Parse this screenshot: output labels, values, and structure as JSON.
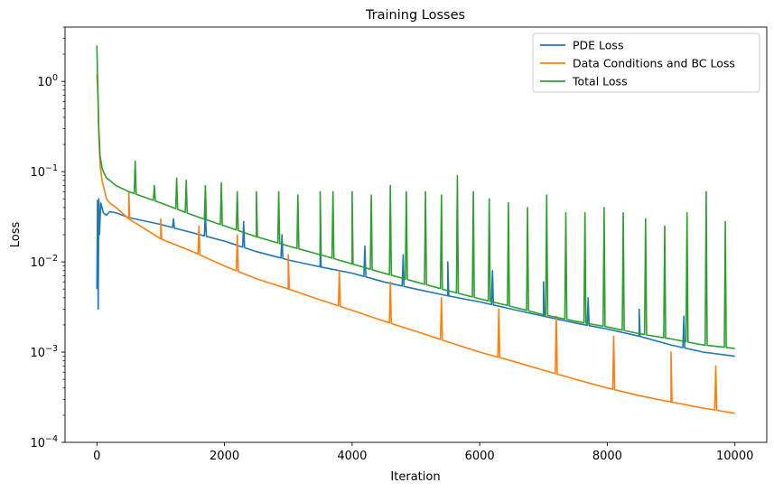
{
  "chart_data": {
    "type": "line",
    "title": "Training Losses",
    "xlabel": "Iteration",
    "ylabel": "Loss",
    "xlim": [
      -500,
      10500
    ],
    "ylim": [
      0.0001,
      4
    ],
    "yscale": "log",
    "grid": false,
    "legend_position": "top-right",
    "x_ticks": [
      {
        "value": 0,
        "label": "0"
      },
      {
        "value": 2000,
        "label": "2000"
      },
      {
        "value": 4000,
        "label": "4000"
      },
      {
        "value": 6000,
        "label": "6000"
      },
      {
        "value": 8000,
        "label": "8000"
      },
      {
        "value": 10000,
        "label": "10000"
      }
    ],
    "y_ticks": [
      {
        "value": 0.0001,
        "base": "10",
        "exp": "−4"
      },
      {
        "value": 0.001,
        "base": "10",
        "exp": "−3"
      },
      {
        "value": 0.01,
        "base": "10",
        "exp": "−2"
      },
      {
        "value": 0.1,
        "base": "10",
        "exp": "−1"
      },
      {
        "value": 1,
        "base": "10",
        "exp": "0"
      }
    ],
    "series": [
      {
        "name": "PDE Loss",
        "color": "#1f77b4",
        "x": [
          0,
          10,
          20,
          30,
          40,
          60,
          80,
          100,
          150,
          200,
          300,
          500,
          1000,
          1500,
          2000,
          2500,
          3000,
          3500,
          4000,
          4500,
          5000,
          5500,
          6000,
          6500,
          7000,
          7500,
          8000,
          8500,
          9000,
          9500,
          10000
        ],
        "y": [
          0.005,
          0.048,
          0.003,
          0.05,
          0.02,
          0.045,
          0.04,
          0.035,
          0.033,
          0.036,
          0.035,
          0.031,
          0.026,
          0.021,
          0.017,
          0.013,
          0.0105,
          0.0088,
          0.0075,
          0.006,
          0.005,
          0.0042,
          0.0036,
          0.003,
          0.0025,
          0.0021,
          0.0018,
          0.0015,
          0.0012,
          0.001,
          0.0009
        ],
        "spikes": [
          {
            "x": 1200,
            "y": 0.03
          },
          {
            "x": 1700,
            "y": 0.035
          },
          {
            "x": 2300,
            "y": 0.028
          },
          {
            "x": 2900,
            "y": 0.02
          },
          {
            "x": 3500,
            "y": 0.018
          },
          {
            "x": 4200,
            "y": 0.015
          },
          {
            "x": 4800,
            "y": 0.012
          },
          {
            "x": 5500,
            "y": 0.01
          },
          {
            "x": 6200,
            "y": 0.008
          },
          {
            "x": 7000,
            "y": 0.006
          },
          {
            "x": 7700,
            "y": 0.004
          },
          {
            "x": 8500,
            "y": 0.003
          },
          {
            "x": 9200,
            "y": 0.0025
          }
        ]
      },
      {
        "name": "Data Conditions and BC Loss",
        "color": "#ff7f0e",
        "x": [
          0,
          10,
          20,
          30,
          50,
          80,
          100,
          150,
          200,
          300,
          500,
          1000,
          1500,
          2000,
          2500,
          3000,
          3500,
          4000,
          4500,
          5000,
          5500,
          6000,
          6500,
          7000,
          7500,
          8000,
          8500,
          9000,
          9500,
          10000
        ],
        "y": [
          1.2,
          0.9,
          0.5,
          0.25,
          0.12,
          0.08,
          0.07,
          0.05,
          0.045,
          0.04,
          0.03,
          0.018,
          0.013,
          0.009,
          0.0065,
          0.005,
          0.0038,
          0.0029,
          0.0022,
          0.0017,
          0.0013,
          0.001,
          0.0008,
          0.00063,
          0.0005,
          0.0004,
          0.00033,
          0.00028,
          0.00024,
          0.00021
        ],
        "spikes": [
          {
            "x": 500,
            "y": 0.06
          },
          {
            "x": 1000,
            "y": 0.03
          },
          {
            "x": 1600,
            "y": 0.025
          },
          {
            "x": 2200,
            "y": 0.02
          },
          {
            "x": 3000,
            "y": 0.012
          },
          {
            "x": 3800,
            "y": 0.008
          },
          {
            "x": 4600,
            "y": 0.006
          },
          {
            "x": 5400,
            "y": 0.004
          },
          {
            "x": 6300,
            "y": 0.003
          },
          {
            "x": 7200,
            "y": 0.0025
          },
          {
            "x": 8100,
            "y": 0.0015
          },
          {
            "x": 9000,
            "y": 0.001
          },
          {
            "x": 9700,
            "y": 0.0007
          }
        ]
      },
      {
        "name": "Total Loss",
        "color": "#2ca02c",
        "x": [
          0,
          10,
          20,
          30,
          50,
          80,
          100,
          150,
          200,
          300,
          500,
          1000,
          1500,
          2000,
          2500,
          3000,
          3500,
          4000,
          4500,
          5000,
          5500,
          6000,
          6500,
          7000,
          7500,
          8000,
          8500,
          9000,
          9500,
          10000
        ],
        "y": [
          2.5,
          1.1,
          0.6,
          0.3,
          0.15,
          0.11,
          0.1,
          0.085,
          0.08,
          0.07,
          0.06,
          0.045,
          0.033,
          0.025,
          0.019,
          0.015,
          0.012,
          0.0095,
          0.0075,
          0.006,
          0.0048,
          0.0039,
          0.0032,
          0.0026,
          0.0022,
          0.0019,
          0.0016,
          0.0014,
          0.0012,
          0.0011
        ],
        "spikes": [
          {
            "x": 600,
            "y": 0.13
          },
          {
            "x": 900,
            "y": 0.07
          },
          {
            "x": 1250,
            "y": 0.085
          },
          {
            "x": 1400,
            "y": 0.08
          },
          {
            "x": 1700,
            "y": 0.07
          },
          {
            "x": 1950,
            "y": 0.075
          },
          {
            "x": 2200,
            "y": 0.06
          },
          {
            "x": 2500,
            "y": 0.06
          },
          {
            "x": 2850,
            "y": 0.06
          },
          {
            "x": 3150,
            "y": 0.055
          },
          {
            "x": 3500,
            "y": 0.06
          },
          {
            "x": 3700,
            "y": 0.06
          },
          {
            "x": 4000,
            "y": 0.06
          },
          {
            "x": 4300,
            "y": 0.055
          },
          {
            "x": 4600,
            "y": 0.07
          },
          {
            "x": 4850,
            "y": 0.06
          },
          {
            "x": 5150,
            "y": 0.06
          },
          {
            "x": 5400,
            "y": 0.055
          },
          {
            "x": 5650,
            "y": 0.09
          },
          {
            "x": 5900,
            "y": 0.06
          },
          {
            "x": 6150,
            "y": 0.05
          },
          {
            "x": 6450,
            "y": 0.045
          },
          {
            "x": 6750,
            "y": 0.04
          },
          {
            "x": 7050,
            "y": 0.055
          },
          {
            "x": 7350,
            "y": 0.035
          },
          {
            "x": 7650,
            "y": 0.035
          },
          {
            "x": 7950,
            "y": 0.04
          },
          {
            "x": 8250,
            "y": 0.035
          },
          {
            "x": 8600,
            "y": 0.03
          },
          {
            "x": 8900,
            "y": 0.025
          },
          {
            "x": 9250,
            "y": 0.035
          },
          {
            "x": 9550,
            "y": 0.06
          },
          {
            "x": 9850,
            "y": 0.028
          }
        ]
      }
    ]
  }
}
